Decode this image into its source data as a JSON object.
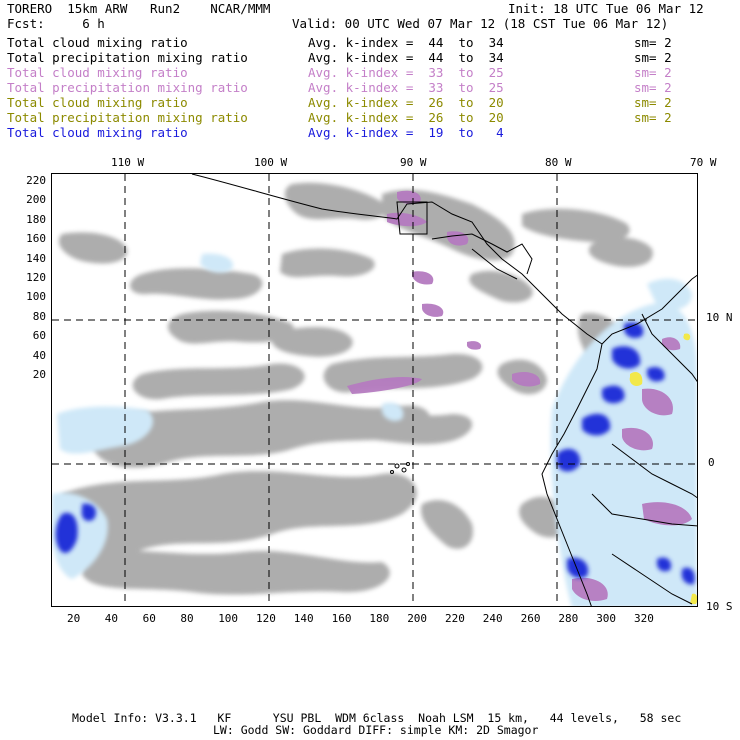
{
  "header": {
    "line1_left": "TORERO  15km ARW   Run2    NCAR/MMM",
    "line1_right": "Init: 18 UTC Tue 06 Mar 12",
    "line2_left": "Fcst:     6 h",
    "line2_right": "Valid: 00 UTC Wed 07 Mar 12 (18 CST Tue 06 Mar 12)"
  },
  "legend": [
    {
      "field": "Total cloud mixing ratio",
      "index": "Avg. k-index =  44  to  34",
      "sm": "sm= 2",
      "color": "#000000"
    },
    {
      "field": "Total precipitation mixing ratio",
      "index": "Avg. k-index =  44  to  34",
      "sm": "sm= 2",
      "color": "#000000"
    },
    {
      "field": "Total cloud mixing ratio",
      "index": "Avg. k-index =  33  to  25",
      "sm": "sm= 2",
      "color": "#c47fc8"
    },
    {
      "field": "Total precipitation mixing ratio",
      "index": "Avg. k-index =  33  to  25",
      "sm": "sm= 2",
      "color": "#c47fc8"
    },
    {
      "field": "Total cloud mixing ratio",
      "index": "Avg. k-index =  26  to  20",
      "sm": "sm= 2",
      "color": "#8c8a00"
    },
    {
      "field": "Total precipitation mixing ratio",
      "index": "Avg. k-index =  26  to  20",
      "sm": "sm= 2",
      "color": "#8c8a00"
    },
    {
      "field": "Total cloud mixing ratio",
      "index": "Avg. k-index =  19  to   4",
      "sm": "",
      "color": "#1a1adc"
    }
  ],
  "map": {
    "top_lon_labels": [
      "110 W",
      "100 W",
      "90 W",
      "80 W",
      "70 W"
    ],
    "right_lat_labels": [
      "10 N",
      "0",
      "10 S"
    ],
    "left_grid_labels": [
      "220",
      "200",
      "180",
      "160",
      "140",
      "120",
      "100",
      "80",
      "60",
      "40",
      "20"
    ],
    "bottom_grid_labels": [
      "20",
      "40",
      "60",
      "80",
      "100",
      "120",
      "140",
      "160",
      "180",
      "200",
      "220",
      "240",
      "260",
      "280",
      "300",
      "320"
    ],
    "colors": {
      "cloud_gray": "#a9a9a9",
      "mid_purple": "#b57bc0",
      "light_blue": "#cfe8f8",
      "deep_blue": "#2232d8",
      "yellow": "#f2e84a",
      "coast": "#000000"
    }
  },
  "footer": {
    "line1": "Model Info: V3.3.1   KF      YSU PBL  WDM 6class  Noah LSM  15 km,   44 levels,   58 sec",
    "line2": "LW: Godd SW: Goddard DIFF: simple KM: 2D Smagor"
  }
}
